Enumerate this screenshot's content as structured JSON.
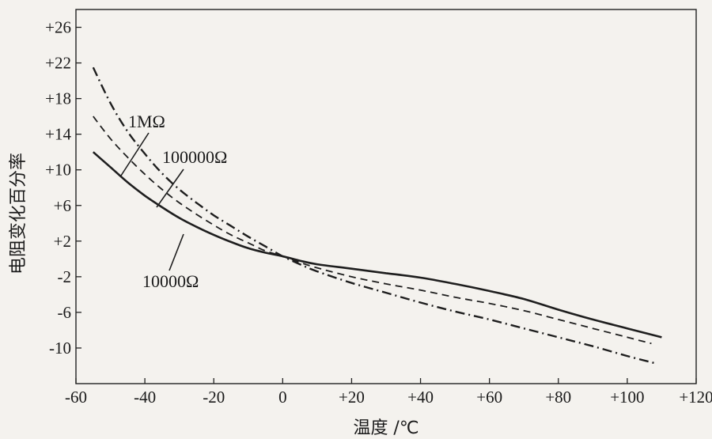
{
  "chart_data": {
    "type": "line",
    "title": "",
    "xlabel": "温度 /℃",
    "ylabel": "电阻变化百分率",
    "xlim": [
      -60,
      120
    ],
    "ylim": [
      -14,
      28
    ],
    "x_ticks": [
      "-60",
      "-40",
      "-20",
      "0",
      "+20",
      "+40",
      "+60",
      "+80",
      "+100",
      "+120"
    ],
    "y_ticks": [
      "+26",
      "+22",
      "+18",
      "+14",
      "+10",
      "+6",
      "+2",
      "-2",
      "-6",
      "-10"
    ],
    "grid": false,
    "legend": "inline labels with leader lines",
    "series": [
      {
        "name": "1MΩ",
        "style": "dash-dot",
        "x": [
          -55,
          -50,
          -45,
          -40,
          -35,
          -30,
          -25,
          -20,
          -15,
          -10,
          -5,
          0,
          5,
          10,
          20,
          30,
          40,
          50,
          60,
          70,
          80,
          90,
          100,
          108
        ],
        "y": [
          21.5,
          17.5,
          14.3,
          11.8,
          9.6,
          7.8,
          6.3,
          4.9,
          3.7,
          2.5,
          1.4,
          0.3,
          -0.6,
          -1.4,
          -2.7,
          -3.8,
          -4.9,
          -5.9,
          -6.8,
          -7.8,
          -8.8,
          -9.8,
          -10.9,
          -11.7
        ]
      },
      {
        "name": "100000Ω",
        "style": "dashed",
        "x": [
          -55,
          -50,
          -45,
          -40,
          -35,
          -30,
          -25,
          -20,
          -15,
          -10,
          -5,
          0,
          5,
          10,
          20,
          30,
          40,
          50,
          60,
          70,
          80,
          90,
          100,
          107
        ],
        "y": [
          16.0,
          13.5,
          11.4,
          9.5,
          7.8,
          6.3,
          5.0,
          3.8,
          2.7,
          1.8,
          0.9,
          0.3,
          -0.4,
          -1.0,
          -2.0,
          -2.8,
          -3.5,
          -4.3,
          -5.0,
          -5.8,
          -6.8,
          -7.8,
          -8.8,
          -9.5
        ]
      },
      {
        "name": "10000Ω",
        "style": "solid",
        "x": [
          -55,
          -50,
          -45,
          -40,
          -35,
          -30,
          -25,
          -20,
          -15,
          -10,
          -5,
          0,
          5,
          10,
          20,
          30,
          40,
          50,
          60,
          70,
          80,
          90,
          100,
          110
        ],
        "y": [
          12.0,
          10.3,
          8.6,
          7.1,
          5.8,
          4.6,
          3.6,
          2.7,
          1.9,
          1.2,
          0.7,
          0.3,
          -0.2,
          -0.6,
          -1.1,
          -1.6,
          -2.1,
          -2.8,
          -3.6,
          -4.5,
          -5.7,
          -6.8,
          -7.8,
          -8.8
        ]
      }
    ],
    "annotations": [
      {
        "text": "1MΩ",
        "series": 0
      },
      {
        "text": "100000Ω",
        "series": 1
      },
      {
        "text": "10000Ω",
        "series": 2
      }
    ]
  }
}
